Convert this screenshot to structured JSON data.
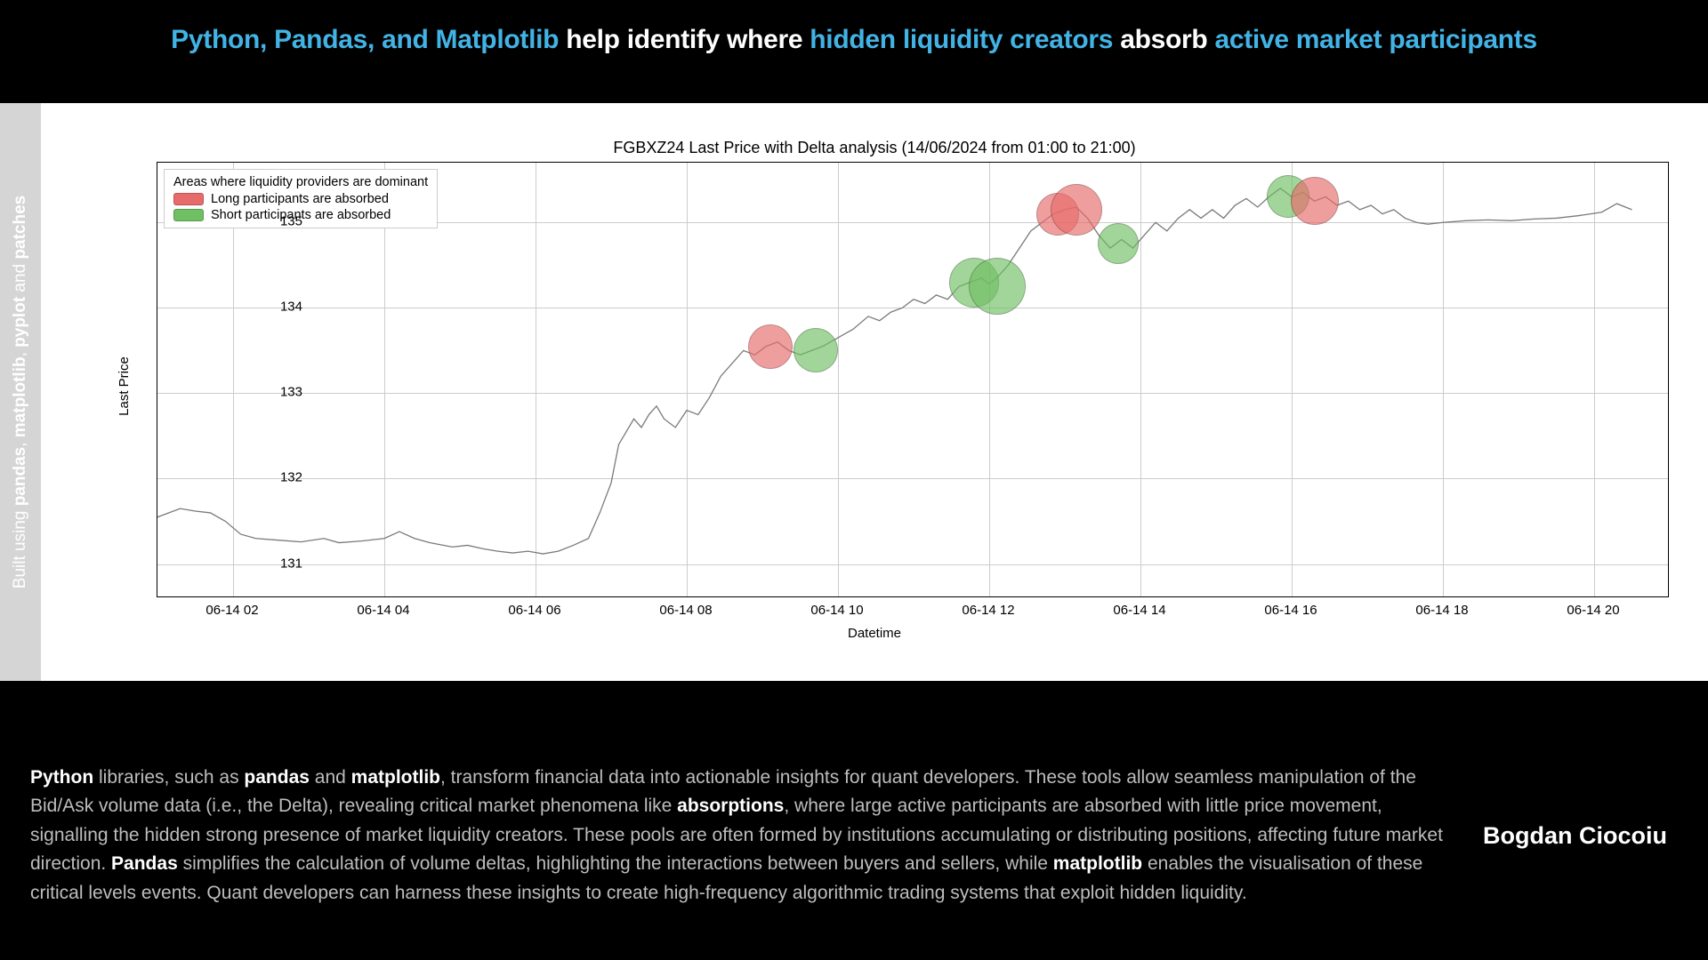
{
  "header": {
    "seg1": "Python, Pandas, and Matplotlib",
    "seg2": " help identify where ",
    "seg3": "hidden liquidity creators",
    "seg4": " absorb ",
    "seg5": "active market participants"
  },
  "sidebar": {
    "prefix": "Built using ",
    "b1": "pandas",
    "s1": ", ",
    "b2": "matplotlib",
    "s2": ", ",
    "b3": "pyplot",
    "s3": " and ",
    "b4": "patches"
  },
  "chart": {
    "type": "line",
    "title": "FGBXZ24 Last Price with Delta analysis (14/06/2024 from 01:00 to 21:00)",
    "ylabel": "Last Price",
    "xlabel": "Datetime",
    "x_domain": [
      1,
      21
    ],
    "y_domain": [
      130.6,
      135.7
    ],
    "line_color": "#7a7a7a",
    "line_width": 1.3,
    "grid_color": "#cccccc",
    "background_color": "#ffffff",
    "xtick_labels": [
      "06-14 02",
      "06-14 04",
      "06-14 06",
      "06-14 08",
      "06-14 10",
      "06-14 12",
      "06-14 14",
      "06-14 16",
      "06-14 18",
      "06-14 20"
    ],
    "xtick_values": [
      2,
      4,
      6,
      8,
      10,
      12,
      14,
      16,
      18,
      20
    ],
    "ytick_labels": [
      "131",
      "132",
      "133",
      "134",
      "135"
    ],
    "ytick_values": [
      131,
      132,
      133,
      134,
      135
    ],
    "legend": {
      "title": "Areas where liquidity providers are dominant",
      "items": [
        {
          "label": "Long participants are absorbed",
          "color": "#e86b6b"
        },
        {
          "label": "Short participants are absorbed",
          "color": "#6fbf63"
        }
      ]
    },
    "markers": [
      {
        "x": 9.1,
        "y": 133.55,
        "r": 25,
        "color": "#e86b6b"
      },
      {
        "x": 9.7,
        "y": 133.5,
        "r": 25,
        "color": "#6fbf63"
      },
      {
        "x": 11.8,
        "y": 134.3,
        "r": 28,
        "color": "#6fbf63"
      },
      {
        "x": 12.1,
        "y": 134.25,
        "r": 32,
        "color": "#6fbf63"
      },
      {
        "x": 12.9,
        "y": 135.1,
        "r": 24,
        "color": "#e86b6b"
      },
      {
        "x": 13.15,
        "y": 135.15,
        "r": 29,
        "color": "#e86b6b"
      },
      {
        "x": 13.7,
        "y": 134.75,
        "r": 23,
        "color": "#6fbf63"
      },
      {
        "x": 15.95,
        "y": 135.3,
        "r": 24,
        "color": "#6fbf63"
      },
      {
        "x": 16.3,
        "y": 135.25,
        "r": 27,
        "color": "#e86b6b"
      }
    ],
    "series": [
      {
        "x": 1.0,
        "y": 131.55
      },
      {
        "x": 1.3,
        "y": 131.65
      },
      {
        "x": 1.5,
        "y": 131.62
      },
      {
        "x": 1.7,
        "y": 131.6
      },
      {
        "x": 1.9,
        "y": 131.5
      },
      {
        "x": 2.1,
        "y": 131.35
      },
      {
        "x": 2.3,
        "y": 131.3
      },
      {
        "x": 2.6,
        "y": 131.28
      },
      {
        "x": 2.9,
        "y": 131.26
      },
      {
        "x": 3.2,
        "y": 131.3
      },
      {
        "x": 3.4,
        "y": 131.25
      },
      {
        "x": 3.7,
        "y": 131.27
      },
      {
        "x": 4.0,
        "y": 131.3
      },
      {
        "x": 4.2,
        "y": 131.38
      },
      {
        "x": 4.4,
        "y": 131.3
      },
      {
        "x": 4.6,
        "y": 131.25
      },
      {
        "x": 4.9,
        "y": 131.2
      },
      {
        "x": 5.1,
        "y": 131.22
      },
      {
        "x": 5.3,
        "y": 131.18
      },
      {
        "x": 5.5,
        "y": 131.15
      },
      {
        "x": 5.7,
        "y": 131.13
      },
      {
        "x": 5.9,
        "y": 131.15
      },
      {
        "x": 6.1,
        "y": 131.12
      },
      {
        "x": 6.3,
        "y": 131.15
      },
      {
        "x": 6.5,
        "y": 131.22
      },
      {
        "x": 6.7,
        "y": 131.3
      },
      {
        "x": 6.85,
        "y": 131.6
      },
      {
        "x": 7.0,
        "y": 131.95
      },
      {
        "x": 7.1,
        "y": 132.4
      },
      {
        "x": 7.2,
        "y": 132.55
      },
      {
        "x": 7.3,
        "y": 132.7
      },
      {
        "x": 7.4,
        "y": 132.6
      },
      {
        "x": 7.5,
        "y": 132.75
      },
      {
        "x": 7.6,
        "y": 132.85
      },
      {
        "x": 7.7,
        "y": 132.7
      },
      {
        "x": 7.85,
        "y": 132.6
      },
      {
        "x": 8.0,
        "y": 132.8
      },
      {
        "x": 8.15,
        "y": 132.75
      },
      {
        "x": 8.3,
        "y": 132.95
      },
      {
        "x": 8.45,
        "y": 133.2
      },
      {
        "x": 8.6,
        "y": 133.35
      },
      {
        "x": 8.75,
        "y": 133.5
      },
      {
        "x": 8.9,
        "y": 133.45
      },
      {
        "x": 9.05,
        "y": 133.55
      },
      {
        "x": 9.2,
        "y": 133.6
      },
      {
        "x": 9.35,
        "y": 133.5
      },
      {
        "x": 9.5,
        "y": 133.45
      },
      {
        "x": 9.65,
        "y": 133.5
      },
      {
        "x": 9.8,
        "y": 133.55
      },
      {
        "x": 10.0,
        "y": 133.65
      },
      {
        "x": 10.2,
        "y": 133.75
      },
      {
        "x": 10.4,
        "y": 133.9
      },
      {
        "x": 10.55,
        "y": 133.85
      },
      {
        "x": 10.7,
        "y": 133.95
      },
      {
        "x": 10.85,
        "y": 134.0
      },
      {
        "x": 11.0,
        "y": 134.1
      },
      {
        "x": 11.15,
        "y": 134.05
      },
      {
        "x": 11.3,
        "y": 134.15
      },
      {
        "x": 11.45,
        "y": 134.1
      },
      {
        "x": 11.6,
        "y": 134.25
      },
      {
        "x": 11.75,
        "y": 134.3
      },
      {
        "x": 11.9,
        "y": 134.35
      },
      {
        "x": 12.0,
        "y": 134.28
      },
      {
        "x": 12.1,
        "y": 134.35
      },
      {
        "x": 12.25,
        "y": 134.5
      },
      {
        "x": 12.4,
        "y": 134.7
      },
      {
        "x": 12.55,
        "y": 134.9
      },
      {
        "x": 12.7,
        "y": 135.0
      },
      {
        "x": 12.85,
        "y": 135.1
      },
      {
        "x": 13.0,
        "y": 135.15
      },
      {
        "x": 13.15,
        "y": 135.18
      },
      {
        "x": 13.3,
        "y": 135.05
      },
      {
        "x": 13.45,
        "y": 134.85
      },
      {
        "x": 13.6,
        "y": 134.7
      },
      {
        "x": 13.75,
        "y": 134.8
      },
      {
        "x": 13.9,
        "y": 134.7
      },
      {
        "x": 14.05,
        "y": 134.85
      },
      {
        "x": 14.2,
        "y": 135.0
      },
      {
        "x": 14.35,
        "y": 134.9
      },
      {
        "x": 14.5,
        "y": 135.05
      },
      {
        "x": 14.65,
        "y": 135.15
      },
      {
        "x": 14.8,
        "y": 135.05
      },
      {
        "x": 14.95,
        "y": 135.15
      },
      {
        "x": 15.1,
        "y": 135.05
      },
      {
        "x": 15.25,
        "y": 135.2
      },
      {
        "x": 15.4,
        "y": 135.28
      },
      {
        "x": 15.55,
        "y": 135.18
      },
      {
        "x": 15.7,
        "y": 135.3
      },
      {
        "x": 15.85,
        "y": 135.4
      },
      {
        "x": 16.0,
        "y": 135.3
      },
      {
        "x": 16.15,
        "y": 135.35
      },
      {
        "x": 16.3,
        "y": 135.25
      },
      {
        "x": 16.45,
        "y": 135.3
      },
      {
        "x": 16.6,
        "y": 135.2
      },
      {
        "x": 16.75,
        "y": 135.25
      },
      {
        "x": 16.9,
        "y": 135.15
      },
      {
        "x": 17.05,
        "y": 135.2
      },
      {
        "x": 17.2,
        "y": 135.1
      },
      {
        "x": 17.35,
        "y": 135.15
      },
      {
        "x": 17.5,
        "y": 135.05
      },
      {
        "x": 17.65,
        "y": 135.0
      },
      {
        "x": 17.8,
        "y": 134.98
      },
      {
        "x": 18.0,
        "y": 135.0
      },
      {
        "x": 18.3,
        "y": 135.02
      },
      {
        "x": 18.6,
        "y": 135.03
      },
      {
        "x": 18.9,
        "y": 135.02
      },
      {
        "x": 19.2,
        "y": 135.04
      },
      {
        "x": 19.5,
        "y": 135.05
      },
      {
        "x": 19.8,
        "y": 135.08
      },
      {
        "x": 20.1,
        "y": 135.12
      },
      {
        "x": 20.3,
        "y": 135.22
      },
      {
        "x": 20.5,
        "y": 135.15
      }
    ]
  },
  "footer": {
    "t0": "Python",
    "t1": " libraries, such as ",
    "t2": "pandas",
    "t3": " and ",
    "t4": "matplotlib",
    "t5": ", transform financial data into actionable insights for quant developers. These tools allow seamless manipulation of the Bid/Ask volume data (i.e., the Delta), revealing critical market phenomena like ",
    "t6": "absorptions",
    "t7": ", where large active participants are absorbed with little price movement, signalling the hidden strong presence of market liquidity creators. These pools are often formed by institutions accumulating or distributing positions, affecting future market direction. ",
    "t8": "Pandas",
    "t9": " simplifies the calculation of volume deltas, highlighting the interactions between buyers and sellers, while ",
    "t10": "matplotlib",
    "t11": " enables the visualisation of these critical levels events. Quant developers can harness these insights to create high-frequency algorithmic trading systems that exploit hidden liquidity.",
    "author": "Bogdan Ciocoiu"
  }
}
